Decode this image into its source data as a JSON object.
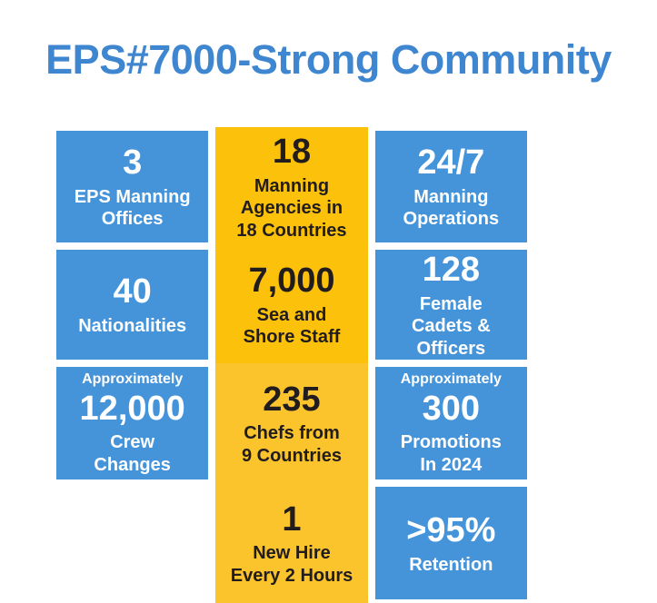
{
  "title": "EPS#7000-Strong Community",
  "colors": {
    "background": "#FFFFFF",
    "title_blue": "#3E86D0",
    "tile_blue": "#4594DA",
    "tile_yellow": "#FCC10A",
    "tile_yellow_alt": "#FBC42C",
    "text_on_blue": "#FFFFFF",
    "text_on_yellow": "#211C1D"
  },
  "tiles": [
    {
      "id": "eps-manning-offices",
      "color": "blue",
      "value": "3",
      "label": "EPS Manning\nOffices"
    },
    {
      "id": "manning-agencies",
      "color": "yellow",
      "value": "18",
      "label": "Manning\nAgencies in\n18 Countries"
    },
    {
      "id": "manning-operations",
      "color": "blue",
      "value": "24/7",
      "label": "Manning\nOperations"
    },
    {
      "id": "nationalities",
      "color": "blue",
      "value": "40",
      "label": "Nationalities"
    },
    {
      "id": "sea-shore-staff",
      "color": "yellow",
      "value": "7,000",
      "label": "Sea and\nShore Staff"
    },
    {
      "id": "female-cadets-officers",
      "color": "blue",
      "value": "128",
      "label": "Female\nCadets &\nOfficers"
    },
    {
      "id": "crew-changes",
      "color": "blue",
      "pre": "Approximately",
      "value": "12,000",
      "label": "Crew\nChanges"
    },
    {
      "id": "chefs",
      "color": "yellow-alt",
      "value": "235",
      "label": "Chefs from\n9 Countries"
    },
    {
      "id": "promotions",
      "color": "blue",
      "pre": "Approximately",
      "value": "300",
      "label": "Promotions\nIn 2024"
    },
    {
      "id": "new-hire",
      "color": "yellow-alt",
      "value": "1",
      "label": "New Hire\nEvery 2 Hours"
    },
    {
      "id": "retention",
      "color": "blue",
      "value": ">95%",
      "label": "Retention"
    }
  ],
  "chart_data": {
    "type": "table",
    "title": "EPS#7000-Strong Community",
    "items": [
      {
        "value": "3",
        "label": "EPS Manning Offices"
      },
      {
        "value": "18",
        "label": "Manning Agencies in 18 Countries"
      },
      {
        "value": "24/7",
        "label": "Manning Operations"
      },
      {
        "value": "40",
        "label": "Nationalities"
      },
      {
        "value": "7,000",
        "label": "Sea and Shore Staff"
      },
      {
        "value": "128",
        "label": "Female Cadets & Officers"
      },
      {
        "qualifier": "Approximately",
        "value": "12,000",
        "label": "Crew Changes"
      },
      {
        "value": "235",
        "label": "Chefs from 9 Countries"
      },
      {
        "qualifier": "Approximately",
        "value": "300",
        "label": "Promotions In 2024"
      },
      {
        "value": "1",
        "label": "New Hire Every 2 Hours"
      },
      {
        "value": ">95%",
        "label": "Retention"
      }
    ]
  }
}
